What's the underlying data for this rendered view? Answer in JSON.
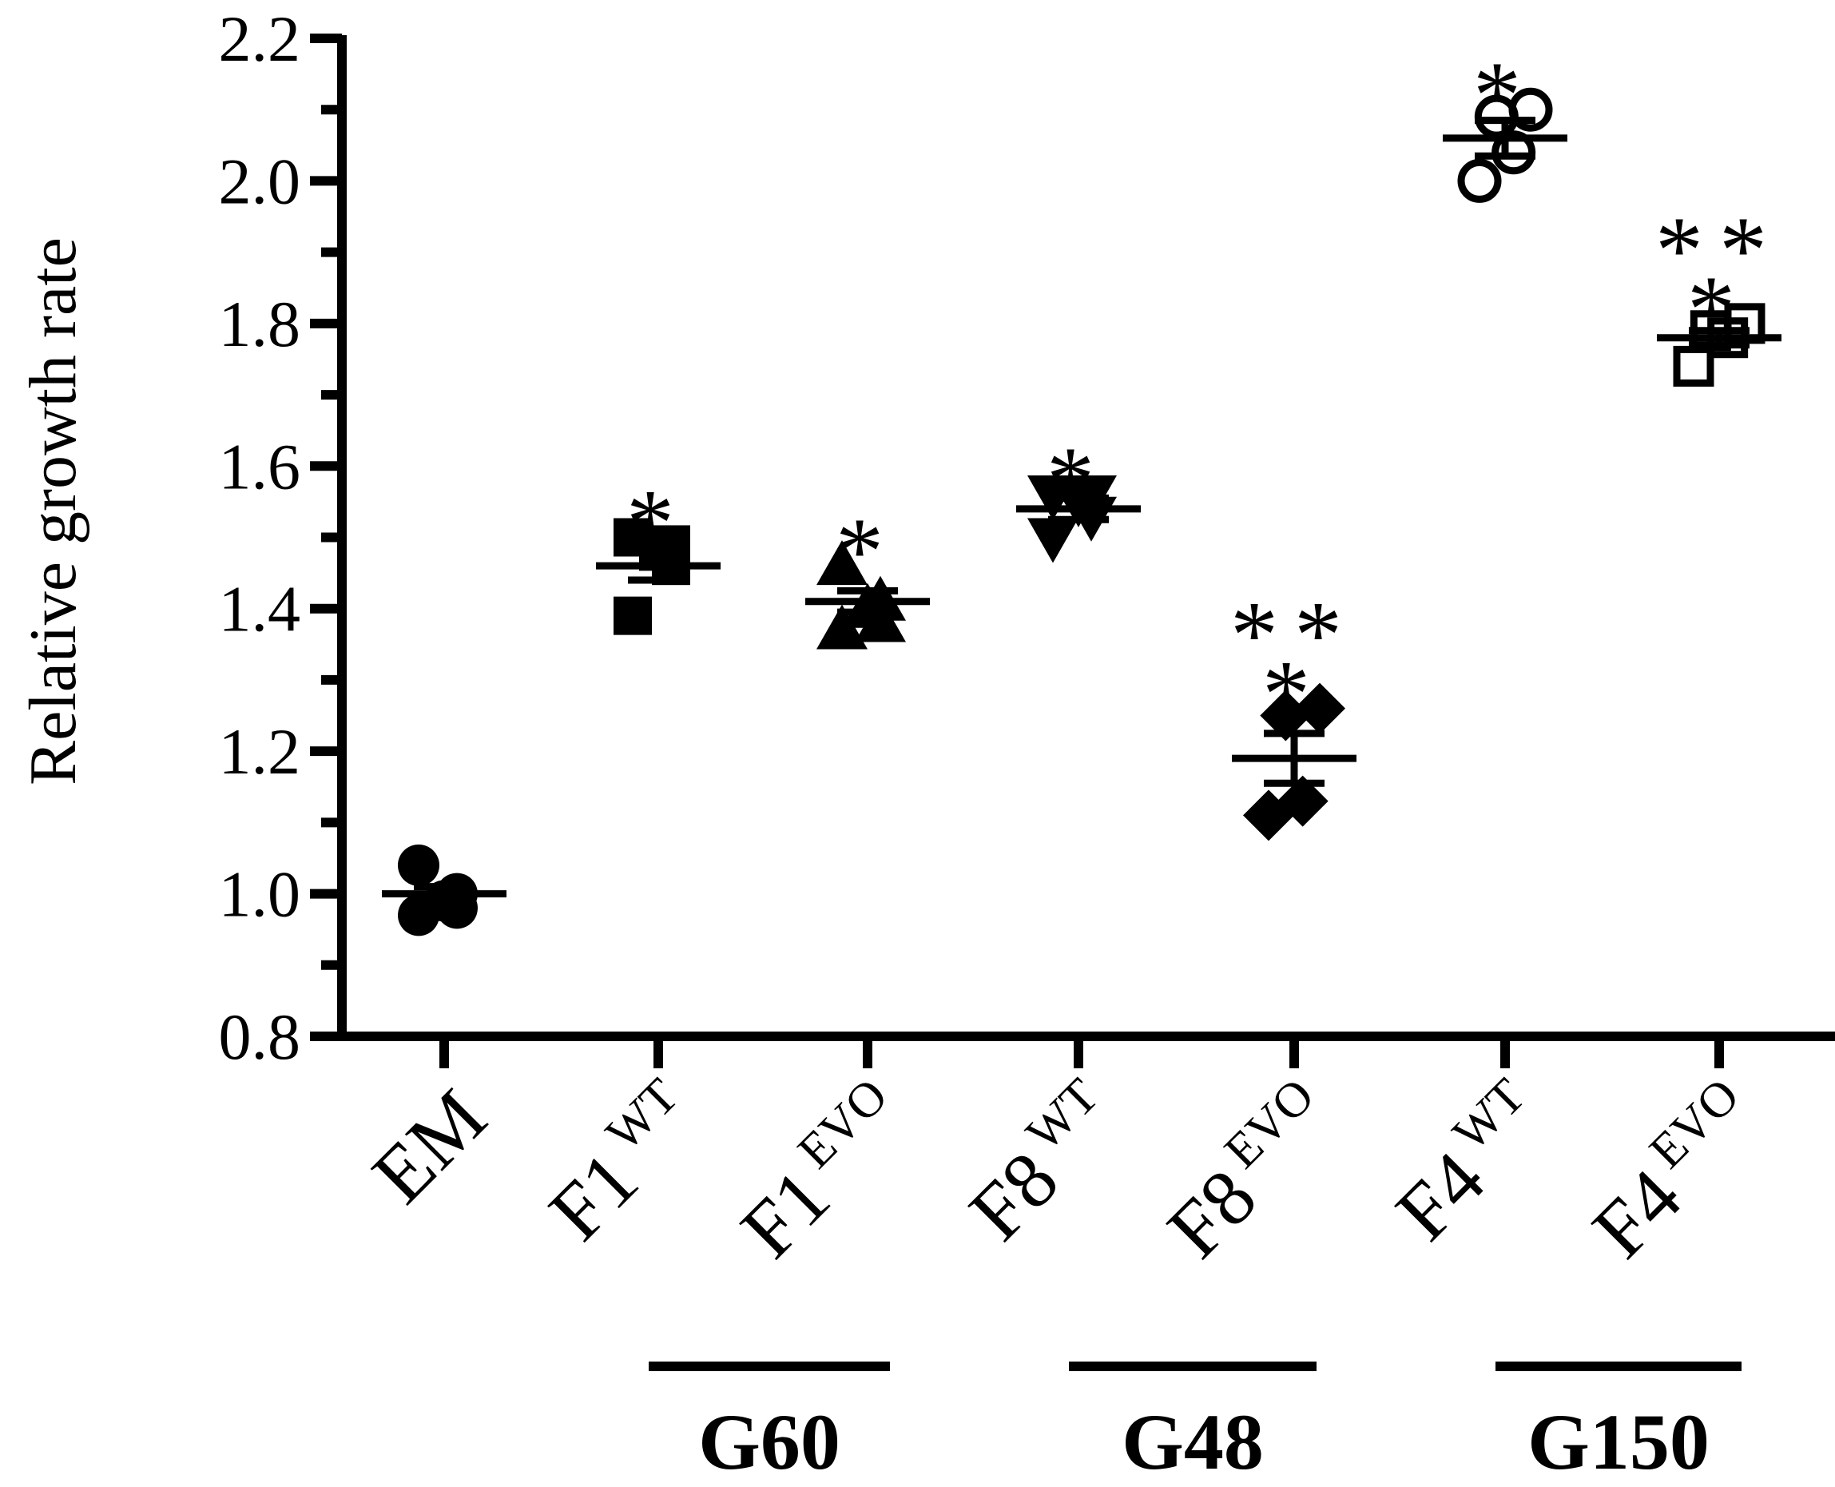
{
  "chart_data": {
    "type": "scatter",
    "title": "",
    "xlabel": "",
    "ylabel": "Relative growth rate",
    "ylim": [
      0.8,
      2.2
    ],
    "yticks": [
      "0.8",
      "1.0",
      "1.2",
      "1.4",
      "1.6",
      "1.8",
      "2.0",
      "2.2"
    ],
    "grid": false,
    "legend": "none",
    "categories": [
      {
        "base": "EM",
        "sup": ""
      },
      {
        "base": "F1",
        "sup": "WT"
      },
      {
        "base": "F1",
        "sup": "EVO"
      },
      {
        "base": "F8",
        "sup": "WT"
      },
      {
        "base": "F8",
        "sup": "EVO"
      },
      {
        "base": "F4",
        "sup": "WT"
      },
      {
        "base": "F4",
        "sup": "EVO"
      }
    ],
    "series": [
      {
        "category": "EM",
        "marker": "circle-filled",
        "values": [
          0.97,
          0.98,
          0.99,
          1.0,
          1.04
        ],
        "mean": 1.0,
        "sem": 0.01,
        "significance": ""
      },
      {
        "category": "F1 WT",
        "marker": "square-filled",
        "values": [
          1.39,
          1.46,
          1.48,
          1.49,
          1.5
        ],
        "mean": 1.46,
        "sem": 0.02,
        "significance": "*"
      },
      {
        "category": "F1 EVO",
        "marker": "triangle-up-filled",
        "values": [
          1.37,
          1.38,
          1.4,
          1.41,
          1.46
        ],
        "mean": 1.41,
        "sem": 0.015,
        "significance": "*"
      },
      {
        "category": "F8 WT",
        "marker": "triangle-down-filled",
        "values": [
          1.5,
          1.53,
          1.55,
          1.56,
          1.56
        ],
        "mean": 1.54,
        "sem": 0.015,
        "significance": "*"
      },
      {
        "category": "F8 EVO",
        "marker": "diamond-filled",
        "values": [
          1.11,
          1.13,
          1.25,
          1.26
        ],
        "mean": 1.19,
        "sem": 0.035,
        "significance": "**\n*"
      },
      {
        "category": "F4 WT",
        "marker": "circle-open",
        "values": [
          2.0,
          2.04,
          2.09,
          2.1
        ],
        "mean": 2.06,
        "sem": 0.025,
        "significance": "*"
      },
      {
        "category": "F4 EVO",
        "marker": "square-open",
        "values": [
          1.74,
          1.78,
          1.79,
          1.8
        ],
        "mean": 1.78,
        "sem": 0.01,
        "significance": "**\n*"
      }
    ],
    "groups": [
      {
        "label": "G60",
        "categories": [
          "F1 WT",
          "F1 EVO"
        ]
      },
      {
        "label": "G48",
        "categories": [
          "F8 WT",
          "F8 EVO"
        ]
      },
      {
        "label": "G150",
        "categories": [
          "F4 WT",
          "F4 EVO"
        ]
      }
    ]
  }
}
